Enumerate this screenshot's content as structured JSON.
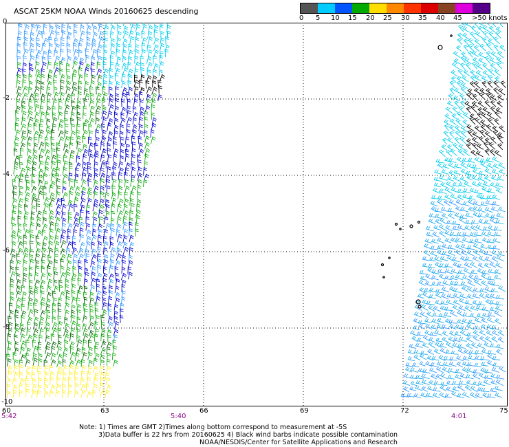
{
  "title": "ASCAT 25KM NOAA Winds 20160625 descending",
  "legend": {
    "units_label": ">50 knots",
    "ticks": [
      "0",
      "5",
      "10",
      "15",
      "20",
      "25",
      "30",
      "35",
      "40",
      "45"
    ],
    "colors": [
      "#555555",
      "#999999",
      "#00ccff",
      "#0066ff",
      "#0000cc",
      "#00aa00",
      "#66dd00",
      "#ffdd00",
      "#ffaa00",
      "#ff6600",
      "#ff2200",
      "#cc0000",
      "#884422",
      "#cc55aa",
      "#dd00dd",
      "#aa00cc",
      "#660099"
    ]
  },
  "axes": {
    "y_ticks": [
      "0",
      "-2",
      "-4",
      "-6",
      "-8",
      "-10"
    ],
    "x_ticks": [
      "60",
      "63",
      "66",
      "69",
      "72",
      "75"
    ]
  },
  "time_labels": {
    "left": "5:42",
    "middle": "5:40",
    "right": "4:01"
  },
  "notes": {
    "line1": "Note: 1) Times are GMT 2)Times along bottom correspond to measurement at -5S",
    "line2": "3)Data buffer is 22 hrs from 20160625 4) Black wind barbs indicate possible contamination",
    "line3": "NOAA/NESDIS/Center for Satellite Applications and Research"
  },
  "colors": {
    "cyan": "#00ccee",
    "light_blue": "#3399ff",
    "blue": "#0000cc",
    "green": "#11aa11",
    "dark_green": "#006600",
    "yellow": "#ffee33",
    "black": "#000000",
    "grid": "#000000"
  }
}
